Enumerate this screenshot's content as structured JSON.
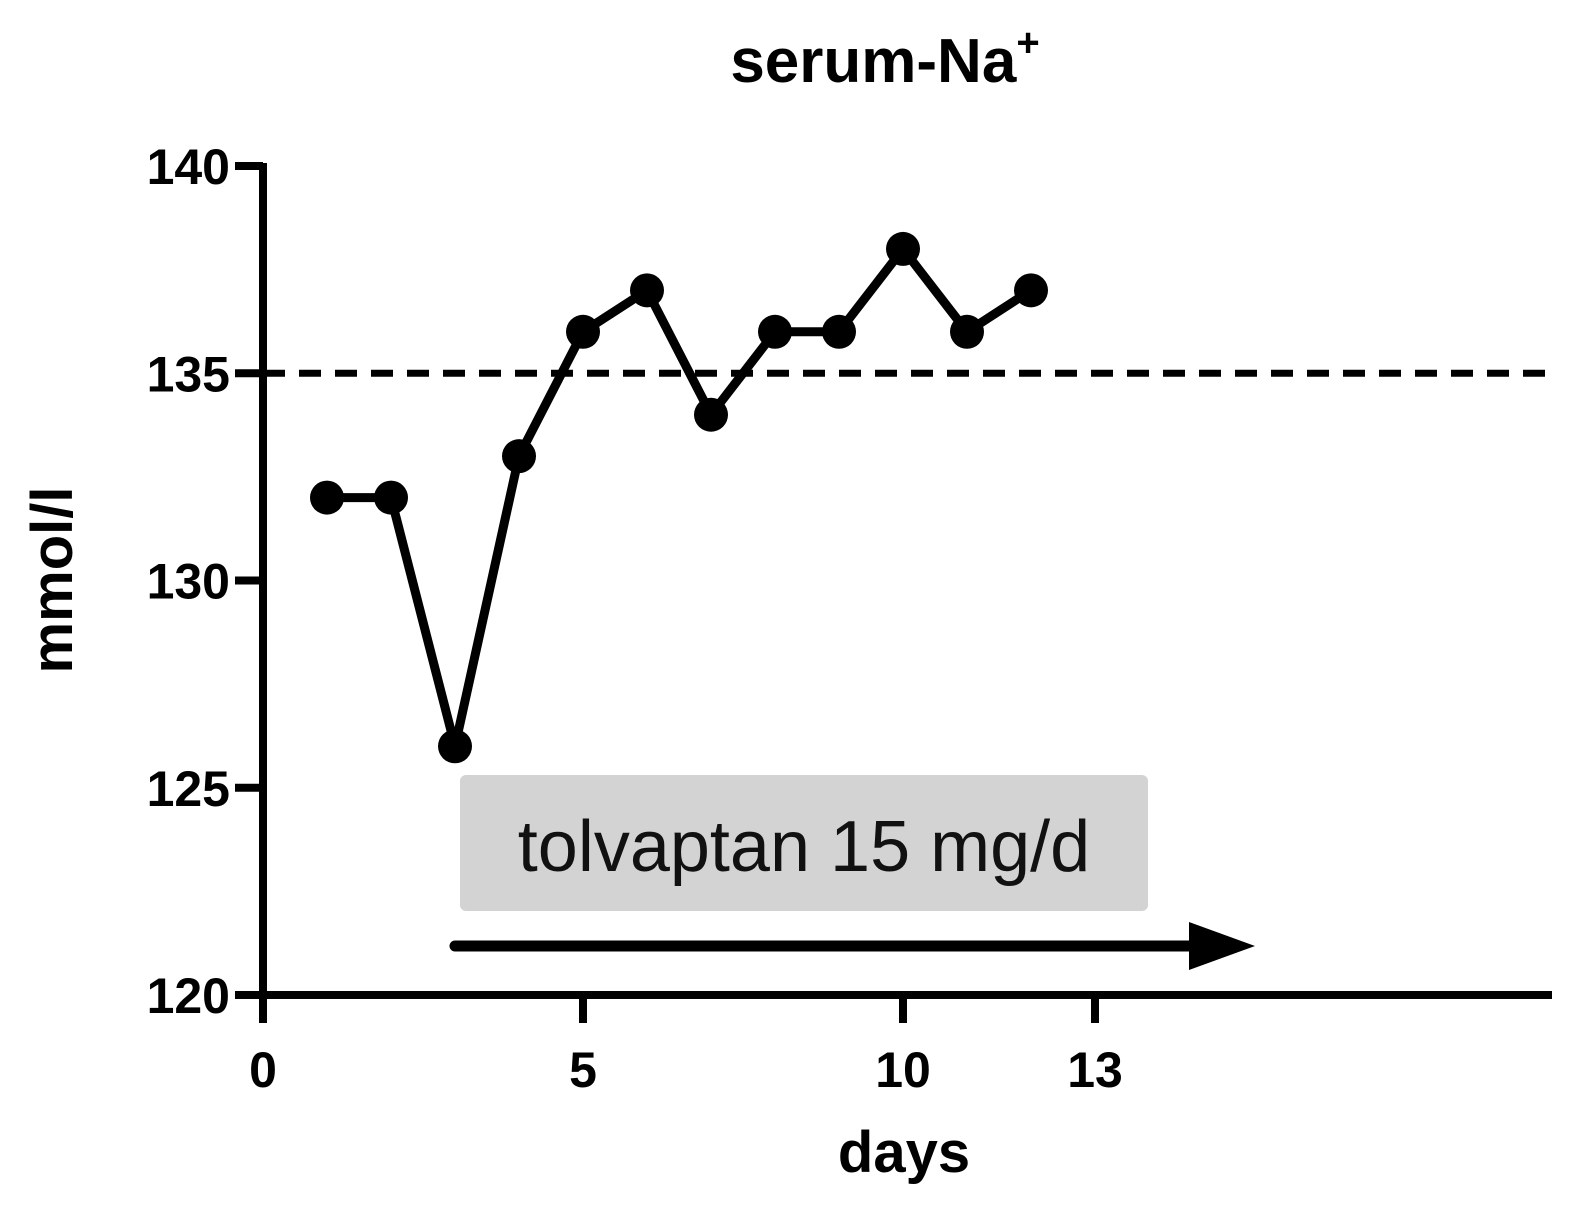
{
  "chart_data": {
    "type": "line",
    "title": "serum-Na",
    "title_superscript": "+",
    "xlabel": "days",
    "ylabel": "mmol/l",
    "xlim": [
      0,
      20
    ],
    "ylim": [
      120,
      140
    ],
    "x_ticks": [
      0,
      5,
      10,
      13
    ],
    "y_ticks": [
      120,
      125,
      130,
      135,
      140
    ],
    "grid": false,
    "reference_line": {
      "y": 135,
      "style": "dashed"
    },
    "series": [
      {
        "x": [
          1,
          2,
          3,
          4,
          5,
          6,
          7,
          8,
          9,
          10,
          11,
          12
        ],
        "y": [
          132,
          132,
          126,
          133,
          136,
          137,
          134,
          136,
          136,
          138,
          136,
          137
        ]
      }
    ],
    "annotation": {
      "text": "tolvaptan 15 mg/d",
      "arrow_from_x": 3,
      "arrow_to_x": 15.5,
      "box_color": "#d3d3d3"
    },
    "colors": {
      "line": "#000000",
      "marker": "#000000"
    }
  }
}
